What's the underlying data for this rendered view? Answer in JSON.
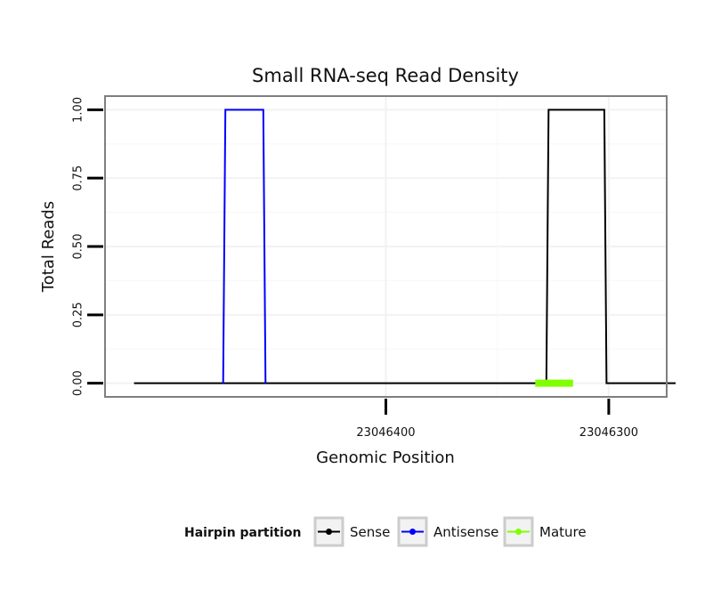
{
  "chart_data": {
    "type": "line",
    "title": "Small RNA-seq Read Density",
    "xlabel": "Genomic Position",
    "ylabel": "Total Reads",
    "x_reversed": true,
    "xlim": [
      23046526,
      23046274
    ],
    "ylim": [
      -0.05,
      1.05
    ],
    "x_ticks": [
      {
        "value": 23046400,
        "label": "23046400"
      },
      {
        "value": 23046300,
        "label": "23046300"
      }
    ],
    "y_ticks": [
      {
        "value": 0.0,
        "label": "0.00"
      },
      {
        "value": 0.25,
        "label": "0.25"
      },
      {
        "value": 0.5,
        "label": "0.50"
      },
      {
        "value": 0.75,
        "label": "0.75"
      },
      {
        "value": 1.0,
        "label": "1.00"
      }
    ],
    "grid": true,
    "series": [
      {
        "name": "Sense",
        "color": "#000000",
        "x": [
          23046513,
          23046328,
          23046327,
          23046302,
          23046301,
          23046270
        ],
        "y": [
          0,
          0,
          1,
          1,
          0,
          0
        ]
      },
      {
        "name": "Antisense",
        "color": "#0000ff",
        "x": [
          23046473,
          23046472,
          23046455,
          23046454
        ],
        "y": [
          0,
          1,
          1,
          0
        ]
      },
      {
        "name": "Mature",
        "color": "#7fff00",
        "x": [
          23046333,
          23046316
        ],
        "y": [
          0,
          0
        ]
      }
    ],
    "legend": {
      "title": "Hairpin partition",
      "position": "bottom",
      "entries": [
        "Sense",
        "Antisense",
        "Mature"
      ]
    }
  }
}
